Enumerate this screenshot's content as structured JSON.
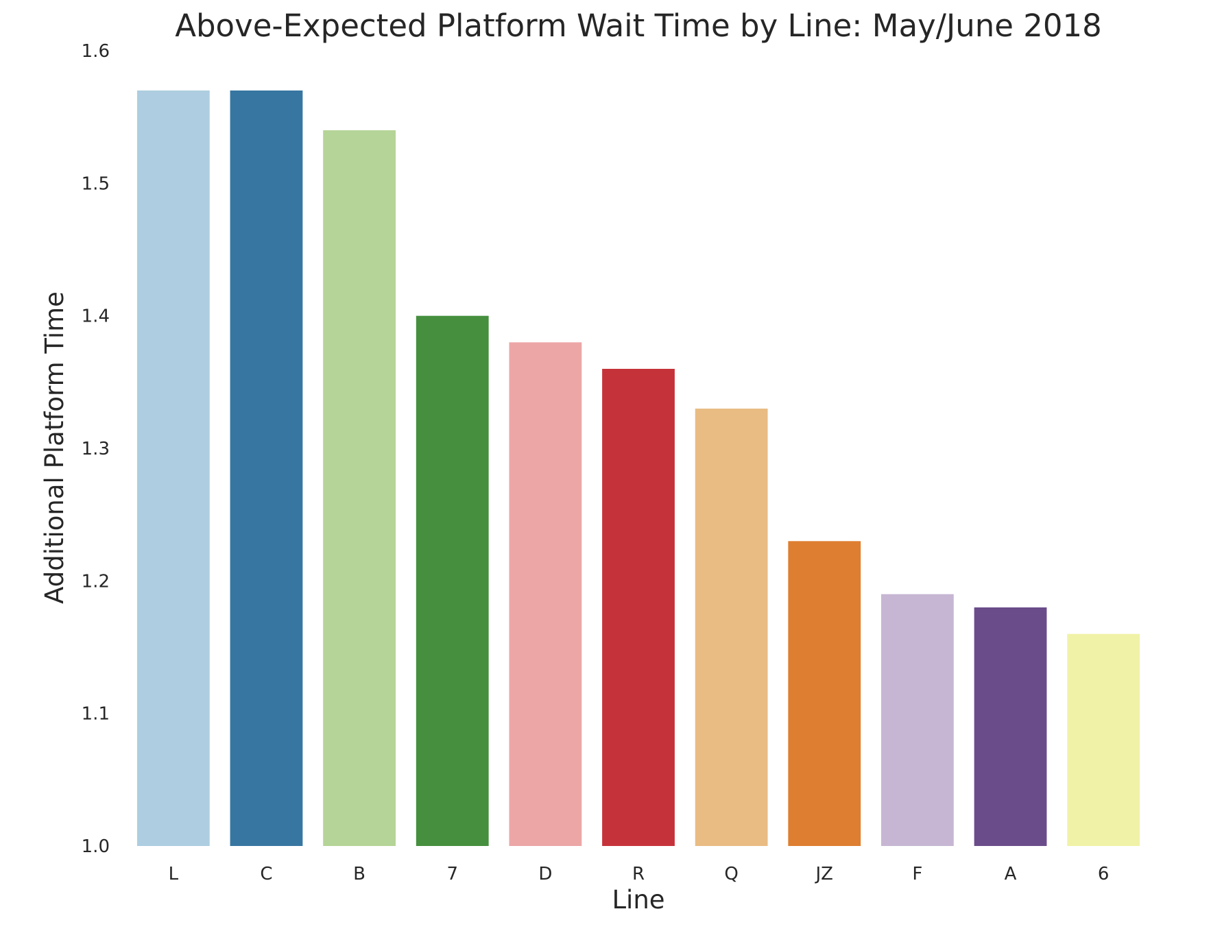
{
  "chart_data": {
    "type": "bar",
    "title": "Above-Expected Platform Wait Time by Line: May/June 2018",
    "xlabel": "Line",
    "ylabel": "Additional Platform Time",
    "categories": [
      "L",
      "C",
      "B",
      "7",
      "D",
      "R",
      "Q",
      "JZ",
      "F",
      "A",
      "6"
    ],
    "values": [
      1.57,
      1.57,
      1.54,
      1.4,
      1.38,
      1.36,
      1.33,
      1.23,
      1.19,
      1.18,
      1.16
    ],
    "colors": [
      "#aecde0",
      "#3776a1",
      "#b5d497",
      "#458f3e",
      "#eca6a6",
      "#c6323a",
      "#e9bc84",
      "#dd7e30",
      "#c6b6d3",
      "#6b4c8b",
      "#f0f2a7"
    ],
    "ylim": [
      1.0,
      1.6
    ],
    "yticks": [
      "1.0",
      "1.1",
      "1.2",
      "1.3",
      "1.4",
      "1.5",
      "1.6"
    ],
    "grid": false,
    "legend": "none"
  }
}
